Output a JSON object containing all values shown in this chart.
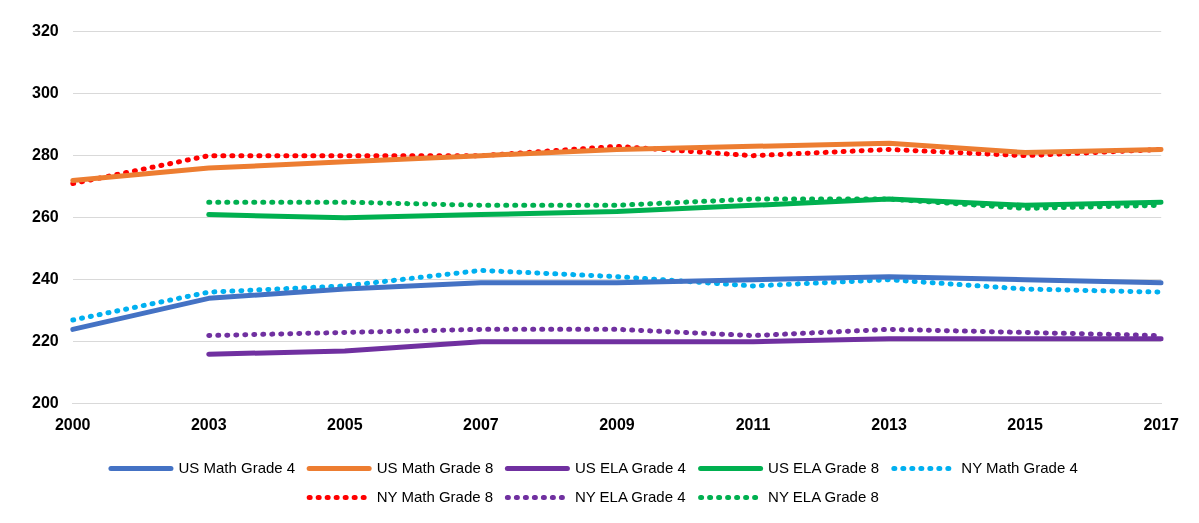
{
  "chart_data": {
    "type": "line",
    "categories": [
      "2000",
      "2003",
      "2005",
      "2007",
      "2009",
      "2011",
      "2013",
      "2015",
      "2017"
    ],
    "ylim": [
      200,
      320
    ],
    "yticks": [
      200,
      220,
      240,
      260,
      280,
      300,
      320
    ],
    "grid": "y",
    "legend": "bottom",
    "marker": "none",
    "series": [
      {
        "name": "US Math Grade 4",
        "color": "#4472c4",
        "line_style": "solid",
        "values": [
          224,
          234,
          237,
          239,
          239,
          240,
          241,
          240,
          239
        ]
      },
      {
        "name": "US Math Grade 8",
        "color": "#ed7d31",
        "line_style": "solid",
        "values": [
          272,
          276,
          278,
          280,
          282,
          283,
          284,
          281,
          282
        ]
      },
      {
        "name": "US ELA Grade 4",
        "color": "#7030a0",
        "line_style": "solid",
        "values": [
          null,
          216,
          217,
          220,
          220,
          220,
          221,
          221,
          221
        ]
      },
      {
        "name": "US ELA Grade 8",
        "color": "#00b050",
        "line_style": "solid",
        "values": [
          null,
          261,
          260,
          261,
          262,
          264,
          266,
          264,
          265
        ]
      },
      {
        "name": "NY Math Grade 4",
        "color": "#00b0f0",
        "line_style": "dotted",
        "values": [
          227,
          236,
          238,
          243,
          241,
          238,
          240,
          237,
          236
        ]
      },
      {
        "name": "NY Math Grade 8",
        "color": "#ff0000",
        "line_style": "dotted",
        "values": [
          271,
          280,
          280,
          280,
          283,
          280,
          282,
          280,
          282
        ]
      },
      {
        "name": "NY ELA Grade 4",
        "color": "#7030a0",
        "line_style": "dotted",
        "values": [
          null,
          222,
          223,
          224,
          224,
          222,
          224,
          223,
          222
        ]
      },
      {
        "name": "NY ELA Grade 8",
        "color": "#00b050",
        "line_style": "dotted",
        "values": [
          null,
          265,
          265,
          264,
          264,
          266,
          266,
          263,
          264
        ]
      }
    ]
  }
}
